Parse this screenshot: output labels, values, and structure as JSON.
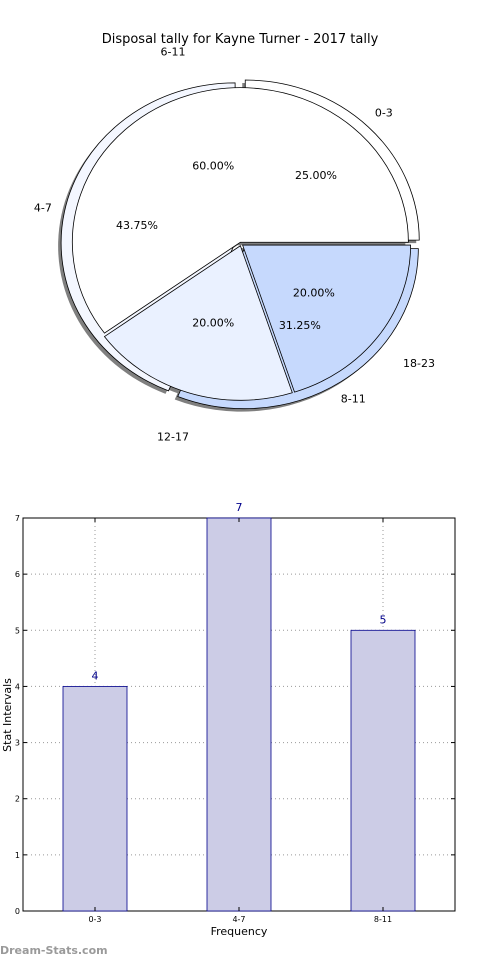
{
  "chart_data": [
    {
      "type": "pie",
      "title": "Disposal tally for Kayne Turner - 2017 tally",
      "inner": {
        "slices": [
          {
            "label": "0-3",
            "pct": "25.00%",
            "value": 25.0,
            "color": "#ffffff"
          },
          {
            "label": "4-7",
            "pct": "43.75%",
            "value": 43.75,
            "color": "#f4f7ff"
          },
          {
            "label": "8-11",
            "pct": "31.25%",
            "value": 31.25,
            "color": "#c6d9fd"
          }
        ]
      },
      "outer": {
        "slices": [
          {
            "label": "6-11",
            "pct": "60.00%",
            "value": 60.0,
            "color": "#ffffff"
          },
          {
            "label": "12-17",
            "pct": "20.00%",
            "value": 20.0,
            "color": "#eaf1ff"
          },
          {
            "label": "18-23",
            "pct": "20.00%",
            "value": 20.0,
            "color": "#c6d9fd"
          }
        ]
      }
    },
    {
      "type": "bar",
      "categories": [
        "0-3",
        "4-7",
        "8-11"
      ],
      "values": [
        4,
        7,
        5
      ],
      "value_labels": [
        "4",
        "7",
        "5"
      ],
      "xlabel": "Frequency",
      "ylabel": "Stat Intervals",
      "ylim": [
        0,
        7
      ],
      "yticks": [
        "0",
        "1",
        "2",
        "3",
        "4",
        "5",
        "6",
        "7"
      ],
      "grid": true,
      "bar_color": "#ccccE6",
      "edge_color": "#00008b"
    }
  ],
  "watermark": "Dream-Stats.com"
}
